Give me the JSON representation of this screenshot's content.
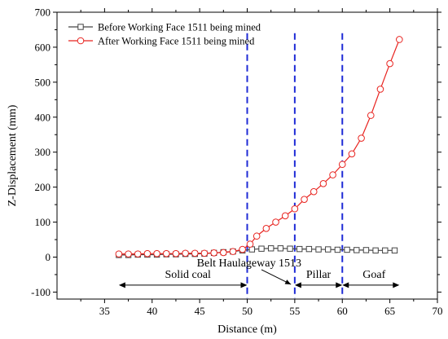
{
  "chart_data": {
    "type": "line",
    "xlabel": "Distance (m)",
    "ylabel": "Z-Displacement (mm)",
    "xlim": [
      30,
      70
    ],
    "ylim": [
      -120,
      700
    ],
    "xticks": [
      35,
      40,
      45,
      50,
      55,
      60,
      65,
      70
    ],
    "yticks": [
      -100,
      0,
      100,
      200,
      300,
      400,
      500,
      600,
      700
    ],
    "xtick_labels": [
      "35",
      "40",
      "45",
      "50",
      "55",
      "60",
      "65",
      "70"
    ],
    "ytick_labels": [
      "-100",
      "0",
      "100",
      "200",
      "300",
      "400",
      "500",
      "600",
      "700"
    ],
    "grid": false,
    "legend_position": "top-left",
    "series": [
      {
        "name": "Before  Working Face 1511 being mined",
        "color": "#444444",
        "marker": "square",
        "x": [
          36.5,
          37.5,
          38.5,
          39.5,
          40.5,
          41.5,
          42.5,
          43.5,
          44.5,
          45.5,
          46.5,
          47.5,
          48.5,
          49.5,
          50.5,
          51.5,
          52.5,
          53.5,
          54.5,
          55.5,
          56.5,
          57.5,
          58.5,
          59.5,
          60.5,
          61.5,
          62.5,
          63.5,
          64.5,
          65.5
        ],
        "y": [
          6,
          6,
          7,
          7,
          7,
          8,
          8,
          9,
          9,
          10,
          12,
          14,
          16,
          19,
          22,
          24,
          25,
          25,
          24,
          23,
          23,
          22,
          22,
          21,
          21,
          20,
          20,
          19,
          19,
          19
        ]
      },
      {
        "name": "After Working Face 1511 being mined",
        "color": "#e8231f",
        "marker": "circle",
        "x": [
          36.5,
          37.5,
          38.5,
          39.5,
          40.5,
          41.5,
          42.5,
          43.5,
          44.5,
          45.5,
          46.5,
          47.5,
          48.5,
          49.5,
          50.3,
          51,
          52,
          53,
          54,
          55,
          56,
          57,
          58,
          59,
          60,
          61,
          62,
          63,
          64,
          65,
          66
        ],
        "y": [
          9,
          9,
          9,
          10,
          10,
          10,
          10,
          11,
          11,
          11,
          12,
          13,
          16,
          22,
          37,
          60,
          82,
          100,
          118,
          138,
          165,
          187,
          210,
          235,
          265,
          295,
          340,
          405,
          480,
          553,
          622
        ]
      }
    ],
    "vlines": [
      50,
      55,
      60
    ],
    "annotations": {
      "region_solid": "Solid coal",
      "region_pillar": "Pillar",
      "region_goaf": "Goaf",
      "belt_label": "Belt Haulageway 1513"
    },
    "regions": {
      "solid": [
        36.5,
        50
      ],
      "belt": [
        50,
        55
      ],
      "pillar": [
        55,
        60
      ],
      "goaf": [
        60,
        66
      ]
    },
    "region_arrow_y": -80
  }
}
